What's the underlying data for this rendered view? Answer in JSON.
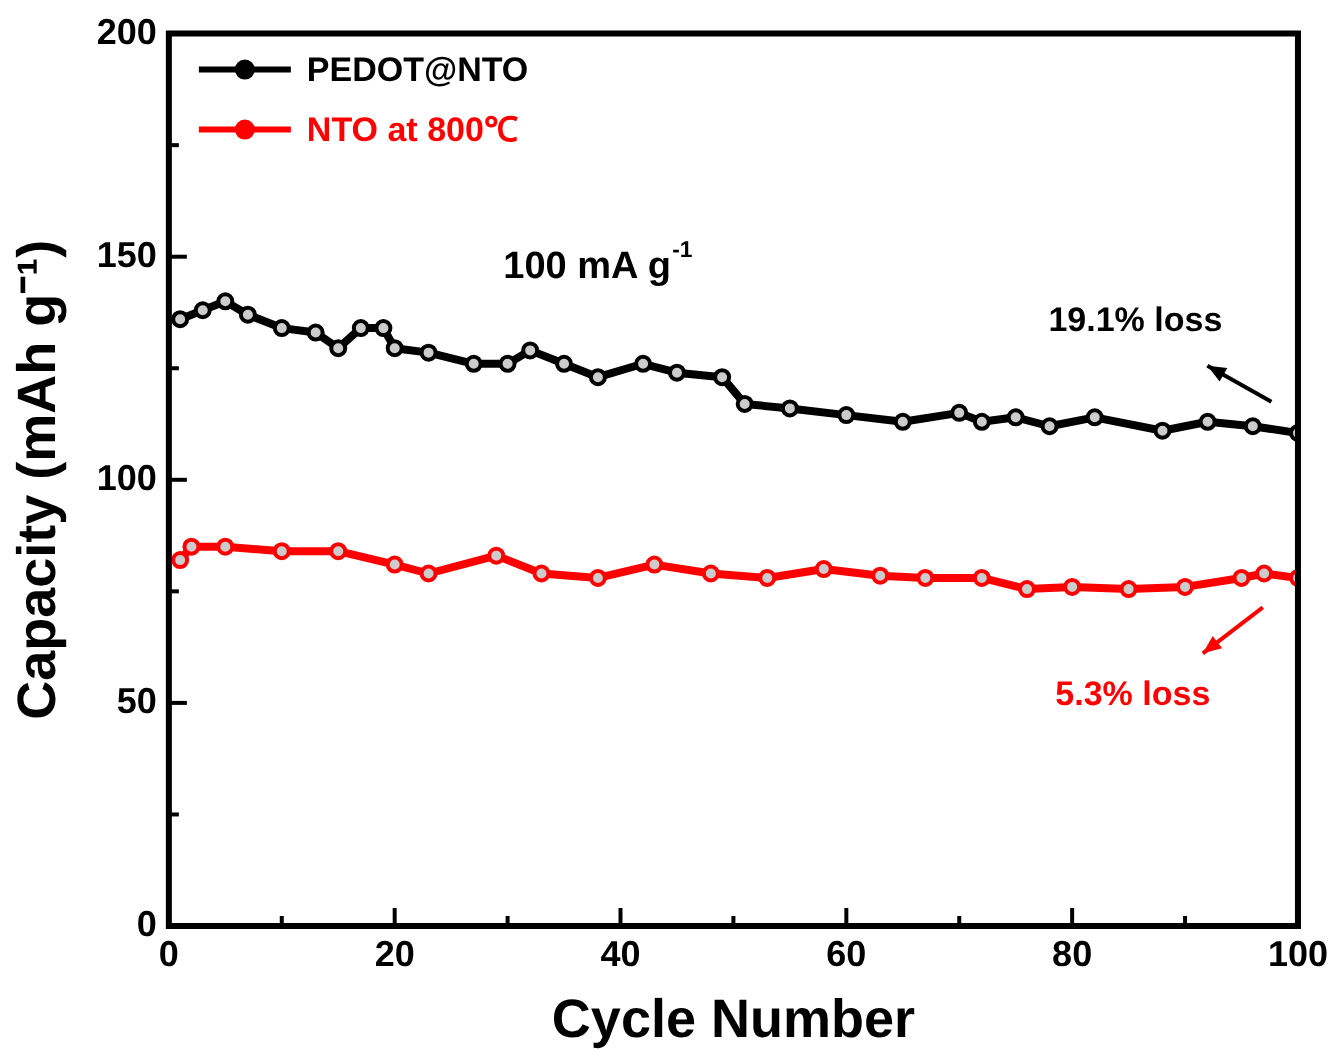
{
  "chart_data": {
    "type": "line",
    "xlabel": "Cycle Number",
    "ylabel": "Capacity (mAh g⁻¹)",
    "xlim": [
      0,
      100
    ],
    "xticks": [
      0,
      {
        "value": 10,
        "label": null
      },
      20,
      {
        "value": 30,
        "label": null
      },
      40,
      {
        "value": 50,
        "label": null
      },
      60,
      {
        "value": 70,
        "label": null
      },
      80,
      {
        "value": 90,
        "label": null
      },
      100
    ],
    "ylim": [
      0,
      200
    ],
    "yticks": [
      0,
      {
        "value": 25,
        "label": null
      },
      50,
      {
        "value": 75,
        "label": null
      },
      100,
      {
        "value": 125,
        "label": null
      },
      150,
      {
        "value": 175,
        "label": null
      },
      200
    ],
    "grid": false,
    "legend": "top left",
    "marker": "circle",
    "line_style": "solid",
    "series": [
      {
        "name": "PEDOT@NTO",
        "color": "#000000",
        "x": [
          1,
          3,
          5,
          7,
          10,
          13,
          15,
          17,
          19,
          20,
          23,
          27,
          30,
          32,
          35,
          38,
          42,
          45,
          49,
          51,
          55,
          60,
          65,
          70,
          72,
          75,
          78,
          82,
          88,
          92,
          96,
          100
        ],
        "values": [
          136,
          138,
          140,
          137,
          134,
          133,
          129.5,
          134,
          134,
          129.5,
          128.5,
          126,
          126,
          129,
          126,
          123,
          126,
          124,
          123,
          117,
          116,
          114.5,
          113,
          115,
          113,
          114,
          112,
          114,
          111,
          113,
          112,
          110.5
        ]
      },
      {
        "name": "NTO at 800℃",
        "color": "#ff0000",
        "x": [
          1,
          2,
          5,
          10,
          15,
          20,
          23,
          29,
          33,
          38,
          43,
          48,
          53,
          58,
          63,
          67,
          72,
          76,
          80,
          85,
          90,
          95,
          97,
          100
        ],
        "values": [
          82,
          85,
          85,
          84,
          84,
          81,
          79,
          83,
          79,
          78,
          81,
          79,
          78,
          80,
          78.5,
          78,
          78,
          75.5,
          76,
          75.5,
          76,
          78,
          79,
          78
        ]
      }
    ],
    "annotations": [
      "100 mA g$^{-1}$",
      {
        "text": "19.1% loss",
        "x": 98,
        "y": 113
      },
      {
        "text": "5.3% loss",
        "x": 96,
        "y": 75
      }
    ]
  }
}
